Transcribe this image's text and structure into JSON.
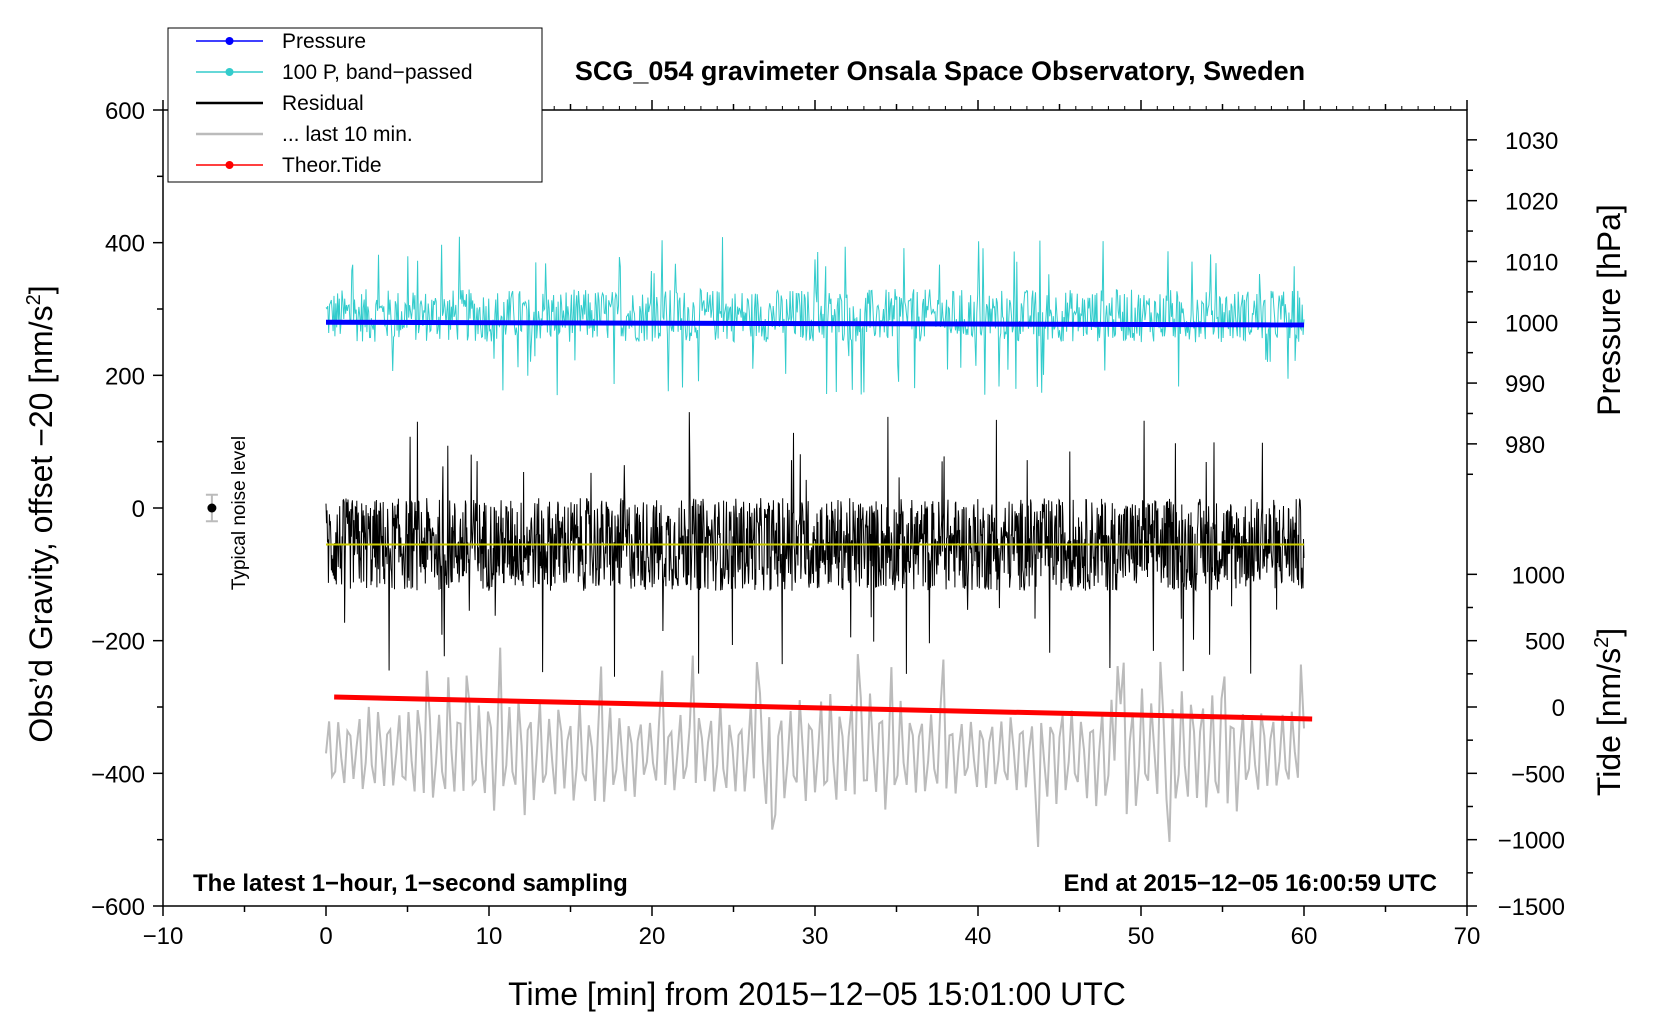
{
  "chart_data": {
    "type": "line",
    "title": "SCG_054 gravimeter Onsala Space Observatory, Sweden",
    "xlabel": "Time [min] from 2015−12−05 15:01:00 UTC",
    "ylabel_left_main": "Obs’d Gravity, offset −20 [nm/s",
    "ylabel_left_sup": "2",
    "ylabel_left_end": "]",
    "ylabel_right_top": "Pressure [hPa]",
    "ylabel_right_bottom_main": "Tide [nm/s",
    "ylabel_right_bottom_sup": "2",
    "ylabel_right_bottom_end": "]",
    "xlim": [
      -10,
      70
    ],
    "ylim_left": [
      -600,
      600
    ],
    "x_ticks": [
      {
        "v": -10,
        "label": "−10"
      },
      {
        "v": 0,
        "label": "0"
      },
      {
        "v": 10,
        "label": "10"
      },
      {
        "v": 20,
        "label": "20"
      },
      {
        "v": 30,
        "label": "30"
      },
      {
        "v": 40,
        "label": "40"
      },
      {
        "v": 50,
        "label": "50"
      },
      {
        "v": 60,
        "label": "60"
      },
      {
        "v": 70,
        "label": "70"
      }
    ],
    "y_left_ticks": [
      {
        "v": 600,
        "label": "600"
      },
      {
        "v": 400,
        "label": "400"
      },
      {
        "v": 200,
        "label": "200"
      },
      {
        "v": 0,
        "label": "0"
      },
      {
        "v": -200,
        "label": "−200"
      },
      {
        "v": -400,
        "label": "−400"
      },
      {
        "v": -600,
        "label": "−600"
      }
    ],
    "pressure_ticks": [
      {
        "v": 1030,
        "label": "1030"
      },
      {
        "v": 1020,
        "label": "1020"
      },
      {
        "v": 1010,
        "label": "1010"
      },
      {
        "v": 1000,
        "label": "1000"
      },
      {
        "v": 990,
        "label": "990"
      },
      {
        "v": 980,
        "label": "980"
      }
    ],
    "pressure_scale_ref": {
      "p1": 1000,
      "g1": 280,
      "p2": 1030,
      "g2": 555
    },
    "tide_ticks": [
      {
        "v": 1000,
        "label": "1000"
      },
      {
        "v": 500,
        "label": "500"
      },
      {
        "v": 0,
        "label": "0"
      },
      {
        "v": -500,
        "label": "−500"
      },
      {
        "v": -1000,
        "label": "−1000"
      },
      {
        "v": -1500,
        "label": "−1500"
      }
    ],
    "tide_scale_ref": {
      "t1": 0,
      "g1": -300,
      "t2": -1500,
      "g2": -600
    },
    "legend": [
      {
        "label": "Pressure",
        "color": "#0000ff",
        "marker": true
      },
      {
        "label": "100 P, band−passed",
        "color": "#33cccc",
        "marker": true
      },
      {
        "label": "Residual",
        "color": "#000000",
        "marker": false
      },
      {
        "label": "... last 10 min.",
        "color": "#bbbbbb",
        "marker": false
      },
      {
        "label": "Theor.Tide",
        "color": "#ff0000",
        "marker": true
      }
    ],
    "series": [
      {
        "name": "Pressure",
        "color": "#0000ff",
        "x_range": [
          0,
          60
        ],
        "start": 280,
        "end": 276
      },
      {
        "name": "100 P, band−passed",
        "color": "#33cccc",
        "x_range": [
          0,
          60
        ],
        "center": 290,
        "amplitude": 40,
        "min": 155,
        "max": 428
      },
      {
        "name": "Residual",
        "color": "#000000",
        "x_range": [
          0,
          60
        ],
        "center": -55,
        "amplitude": 70,
        "min": -258,
        "max": 152
      },
      {
        "name": "Residual mean",
        "color": "#cccc00",
        "x_range": [
          0,
          60
        ],
        "value": -55
      },
      {
        "name": "... last 10 min.",
        "color": "#bbbbbb",
        "x_range": [
          0,
          60
        ],
        "center": -370,
        "amplitude": 80,
        "min": -528,
        "max": -190
      },
      {
        "name": "Theor.Tide",
        "color": "#ff0000",
        "x_range": [
          0.5,
          60.5
        ],
        "start": -285,
        "end": -318
      }
    ],
    "noise_marker": {
      "x": -7,
      "y": 0,
      "err": 20,
      "label": "Typical noise level"
    },
    "annotations": {
      "bottom_left": "The latest 1−hour, 1−second sampling",
      "bottom_right": "End at 2015−12−05 16:00:59 UTC"
    }
  }
}
